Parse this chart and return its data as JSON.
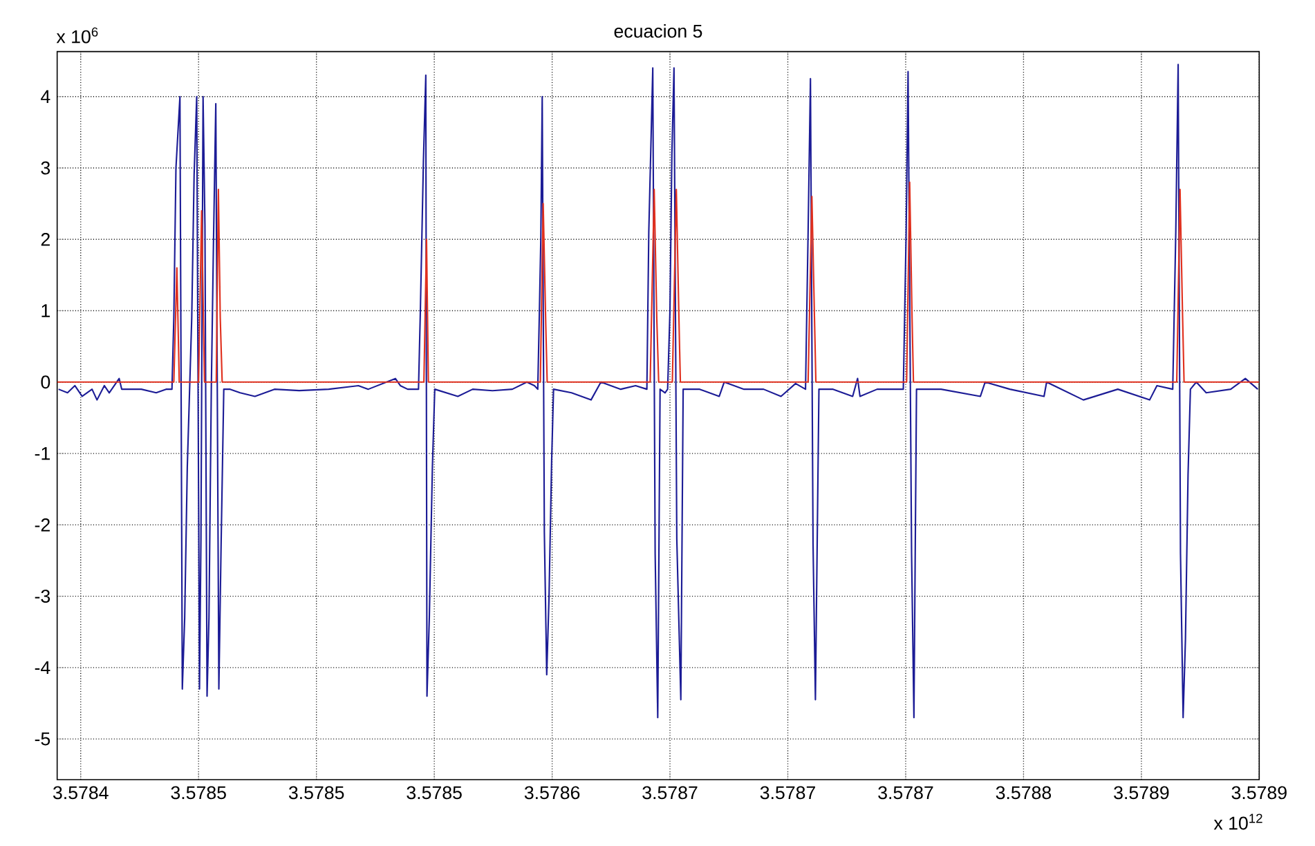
{
  "chart_data": {
    "type": "line",
    "title": "ecuacion 5",
    "annotations": [
      "x 10$^{6}$",
      "x 10$^{12}$"
    ],
    "xlim": [
      3.57839,
      3.5789
    ],
    "ylim": [
      -5.57,
      4.63
    ],
    "xticks": [
      {
        "value": 3.5784,
        "label": "3.5784"
      },
      {
        "value": 3.57845,
        "label": "3.5785"
      },
      {
        "value": 3.5785,
        "label": "3.5785"
      },
      {
        "value": 3.57855,
        "label": "3.5785"
      },
      {
        "value": 3.5786,
        "label": "3.5786"
      },
      {
        "value": 3.57865,
        "label": "3.5787"
      },
      {
        "value": 3.5787,
        "label": "3.5787"
      },
      {
        "value": 3.57875,
        "label": "3.5787"
      },
      {
        "value": 3.5788,
        "label": "3.5788"
      },
      {
        "value": 3.57885,
        "label": "3.5789"
      },
      {
        "value": 3.5789,
        "label": "3.5789"
      }
    ],
    "yticks": [
      -5,
      -4,
      -3,
      -2,
      -1,
      0,
      1,
      2,
      3,
      4
    ],
    "grid": true,
    "marker": "none",
    "line_style": "solid",
    "series": [
      {
        "color": "#1c1c96",
        "x": [
          3.5783906,
          3.5783944,
          3.5783975,
          3.5784006,
          3.5784048,
          3.5784069,
          3.57841,
          3.5784121,
          3.5784163,
          3.5784174,
          3.5784257,
          3.578432,
          3.5784362,
          3.5784387,
          3.5784395,
          3.5784404,
          3.5784421,
          3.5784431,
          3.5784441,
          3.5784452,
          3.5784462,
          3.5784471,
          3.5784481,
          3.5784492,
          3.5784504,
          3.578451,
          3.5784519,
          3.5784527,
          3.5784536,
          3.5784544,
          3.5784554,
          3.5784563,
          3.5784573,
          3.5784586,
          3.5784596,
          3.5784607,
          3.5784634,
          3.5784676,
          3.5784739,
          3.5784822,
          3.5784927,
          3.5785052,
          3.5785178,
          3.578522,
          3.5785335,
          3.5785356,
          3.5785387,
          3.5785433,
          3.5785441,
          3.5785454,
          3.5785464,
          3.5785469,
          3.5785479,
          3.5785492,
          3.5785502,
          3.57856,
          3.5785663,
          3.5785747,
          3.5785831,
          3.5785893,
          3.5785925,
          3.5785939,
          3.5785946,
          3.5785952,
          3.5785958,
          3.5785967,
          3.5785977,
          3.5785987,
          3.5785998,
          3.5786006,
          3.5786082,
          3.5786165,
          3.5786207,
          3.5786291,
          3.5786354,
          3.5786402,
          3.578641,
          3.5786427,
          3.5786437,
          3.5786448,
          3.5786458,
          3.5786479,
          3.578649,
          3.57865,
          3.5786508,
          3.5786517,
          3.5786529,
          3.5786546,
          3.5786556,
          3.5786626,
          3.5786709,
          3.578673,
          3.5786814,
          3.5786897,
          3.5786971,
          3.5787033,
          3.5787075,
          3.5787086,
          3.5787096,
          3.5787107,
          3.5787117,
          3.5787132,
          3.5787192,
          3.5787275,
          3.5787296,
          3.5787306,
          3.5787379,
          3.5787462,
          3.578749,
          3.5787502,
          3.578751,
          3.5787525,
          3.5787535,
          3.5787546,
          3.578765,
          3.5787817,
          3.5787837,
          3.5787942,
          3.5788087,
          3.5788098,
          3.5788254,
          3.57884,
          3.5788535,
          3.5788566,
          3.5788633,
          3.5788646,
          3.5788656,
          3.5788666,
          3.5788677,
          3.5788687,
          3.5788698,
          3.5788708,
          3.5788733,
          3.5788775,
          3.5788879,
          3.5788941,
          3.5788994
        ],
        "values": [
          -0.1,
          -0.15,
          -0.05,
          -0.2,
          -0.1,
          -0.25,
          -0.05,
          -0.15,
          0.05,
          -0.1,
          -0.1,
          -0.15,
          -0.1,
          -0.1,
          0.9,
          3.0,
          4.0,
          -4.3,
          -3.3,
          -1.2,
          -0.1,
          0.9,
          2.9,
          4.0,
          -4.3,
          -2.2,
          4.0,
          2.2,
          -4.4,
          -3.3,
          -0.1,
          1.9,
          3.9,
          -4.3,
          -2.2,
          -0.1,
          -0.1,
          -0.15,
          -0.2,
          -0.1,
          -0.12,
          -0.1,
          -0.05,
          -0.1,
          0.05,
          -0.05,
          -0.1,
          -0.1,
          1.0,
          3.1,
          4.3,
          -4.4,
          -3.3,
          -1.2,
          -0.1,
          -0.2,
          -0.1,
          -0.12,
          -0.1,
          0.0,
          -0.05,
          -0.1,
          1.0,
          2.0,
          4.0,
          -2.1,
          -4.1,
          -3.0,
          -1.1,
          -0.1,
          -0.15,
          -0.25,
          0.0,
          -0.1,
          -0.05,
          -0.1,
          2.1,
          4.4,
          -2.4,
          -4.7,
          -0.1,
          -0.15,
          -0.1,
          1.0,
          3.2,
          4.4,
          -2.2,
          -4.45,
          -0.1,
          -0.1,
          -0.2,
          0.0,
          -0.1,
          -0.1,
          -0.2,
          -0.02,
          -0.1,
          2.1,
          4.25,
          -2.25,
          -4.45,
          -0.1,
          -0.1,
          -0.2,
          0.05,
          -0.2,
          -0.1,
          -0.1,
          -0.1,
          2.1,
          4.35,
          -2.4,
          -4.7,
          -0.1,
          -0.1,
          -0.2,
          0.0,
          -0.1,
          -0.2,
          0.0,
          -0.25,
          -0.1,
          -0.25,
          -0.05,
          -0.1,
          2.1,
          4.45,
          -2.4,
          -4.7,
          -3.6,
          -1.3,
          -0.1,
          0.0,
          -0.15,
          -0.1,
          0.05,
          -0.1
        ]
      },
      {
        "color": "#e0301e",
        "x": [
          3.57839,
          3.5784395,
          3.5784408,
          3.5784418,
          3.57845,
          3.5784513,
          3.5784525,
          3.5784575,
          3.5784584,
          3.5784592,
          3.57846,
          3.5785456,
          3.5785467,
          3.5785475,
          3.578595,
          3.5785962,
          3.5785973,
          3.5785979,
          3.5786416,
          3.5786433,
          3.5786444,
          3.5786452,
          3.578651,
          3.5786527,
          3.5786538,
          3.5786544,
          3.5787086,
          3.5787102,
          3.5787113,
          3.5787119,
          3.5787504,
          3.5787517,
          3.5787527,
          3.5787533,
          3.578865,
          3.5788664,
          3.5788675,
          3.5788681,
          3.5789
        ],
        "values": [
          0,
          0,
          1.6,
          0,
          0,
          2.4,
          0,
          0,
          2.7,
          0.9,
          0,
          0,
          2.0,
          0,
          0,
          2.5,
          0.8,
          0,
          0,
          2.7,
          0.9,
          0,
          0,
          2.7,
          0.9,
          0,
          0,
          2.6,
          0.9,
          0,
          0,
          2.8,
          0.9,
          0,
          0,
          2.7,
          0.9,
          0,
          0
        ]
      }
    ]
  }
}
